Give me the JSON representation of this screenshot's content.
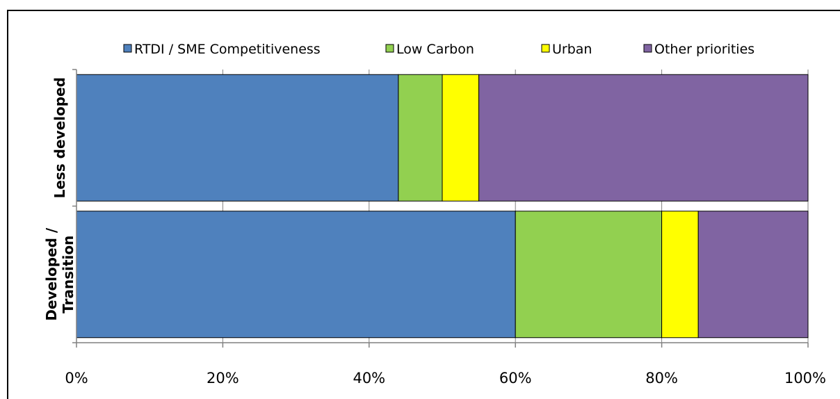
{
  "chart_data": {
    "type": "bar",
    "orientation": "horizontal",
    "stacked": "percent",
    "title": "",
    "xlabel": "",
    "ylabel": "",
    "categories": [
      "Less developed",
      "Developed / Transition"
    ],
    "category_lines": [
      [
        "Less developed"
      ],
      [
        "Developed /",
        "Transition"
      ]
    ],
    "series": [
      {
        "name": "RTDI / SME Competitiveness",
        "values": [
          44,
          60
        ],
        "color": "#4f81bd"
      },
      {
        "name": "Low Carbon",
        "values": [
          6,
          20
        ],
        "color": "#92d050"
      },
      {
        "name": "Urban",
        "values": [
          5,
          5
        ],
        "color": "#ffff00"
      },
      {
        "name": "Other priorities",
        "values": [
          45,
          15
        ],
        "color": "#8064a2"
      }
    ],
    "x_ticks": [
      "0%",
      "20%",
      "40%",
      "60%",
      "80%",
      "100%"
    ],
    "xlim": [
      0,
      100
    ],
    "grid": true,
    "legend_position": "top"
  }
}
